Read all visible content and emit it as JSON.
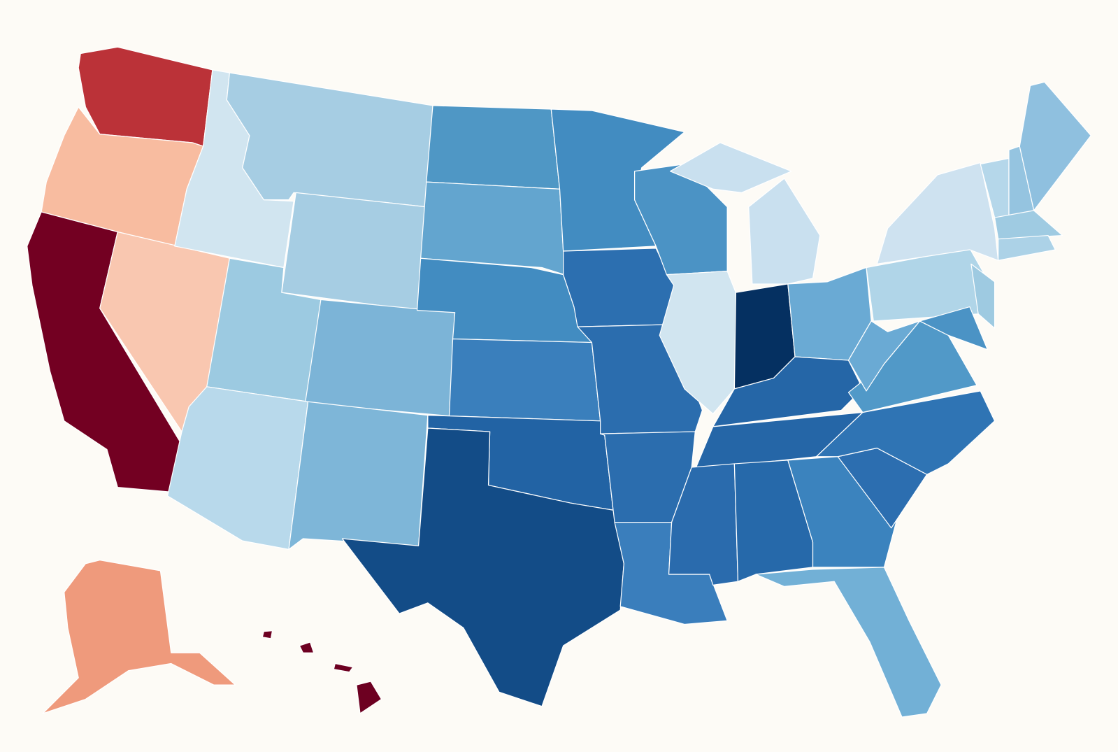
{
  "map": {
    "background": "#fdfbf6",
    "border_color": "#ffffff",
    "regions": [
      {
        "color": "#bb3238"
      },
      {
        "color": "#f8bca0"
      },
      {
        "color": "#730022"
      },
      {
        "color": "#f9c7b0"
      },
      {
        "color": "#d1e5f0"
      },
      {
        "color": "#a6cde3"
      },
      {
        "color": "#a6cde3"
      },
      {
        "color": "#9ccae1"
      },
      {
        "color": "#7cb4d7"
      },
      {
        "color": "#b8d9eb"
      },
      {
        "color": "#7eb6d8"
      },
      {
        "color": "#4f97c5"
      },
      {
        "color": "#63a5cf"
      },
      {
        "color": "#428cc1"
      },
      {
        "color": "#3a7fbc"
      },
      {
        "color": "#2263a4"
      },
      {
        "color": "#134c87"
      },
      {
        "color": "#428cc1"
      },
      {
        "color": "#2c6fb0"
      },
      {
        "color": "#2b6dae"
      },
      {
        "color": "#2b6dae"
      },
      {
        "color": "#3a7ebc"
      },
      {
        "color": "#4b93c5"
      },
      {
        "color": "#d1e5f0"
      },
      {
        "color": "#c9e0ef"
      },
      {
        "color": "#053061"
      },
      {
        "color": "#6aaad4"
      },
      {
        "color": "#2566a7"
      },
      {
        "color": "#2566a7"
      },
      {
        "color": "#2a6bad"
      },
      {
        "color": "#2669aa"
      },
      {
        "color": "#3b83be"
      },
      {
        "color": "#72b0d6"
      },
      {
        "color": "#2c6eb0"
      },
      {
        "color": "#2f74b4"
      },
      {
        "color": "#5199c8"
      },
      {
        "color": "#6aaad4"
      },
      {
        "color": "#b0d5e8"
      },
      {
        "color": "#cee2f0"
      },
      {
        "color": "#9ecae1"
      },
      {
        "color": "#4b93c5"
      },
      {
        "color": "#b5d7ea"
      },
      {
        "color": "#95c4e0"
      },
      {
        "color": "#8fc0df"
      },
      {
        "color": "#9fcbe2"
      },
      {
        "color": "#acd2e7"
      },
      {
        "color": "#ef9a7c"
      },
      {
        "color": "#6d0021"
      }
    ]
  }
}
